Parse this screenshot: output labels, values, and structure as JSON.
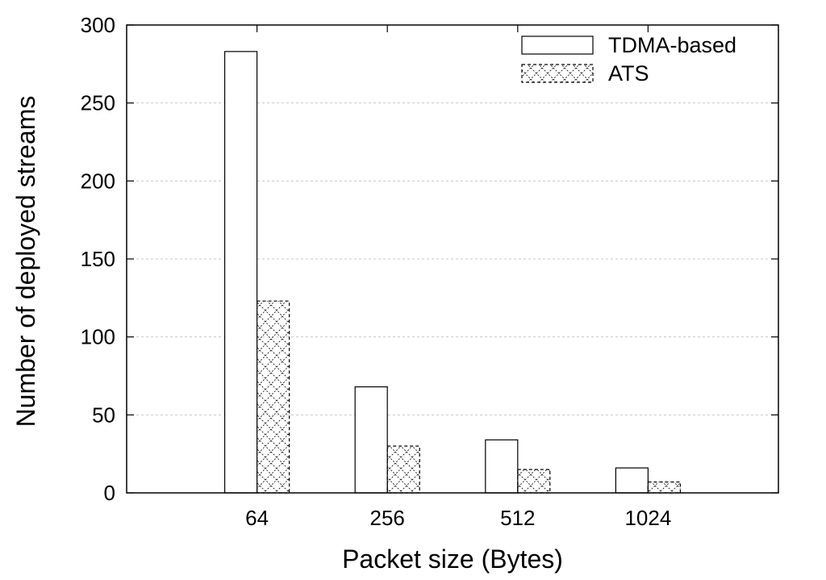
{
  "chart_data": {
    "type": "bar",
    "title": "",
    "xlabel": "Packet size (Bytes)",
    "ylabel": "Number of deployed streams",
    "categories": [
      "64",
      "256",
      "512",
      "1024"
    ],
    "series": [
      {
        "name": "TDMA-based",
        "values": [
          283,
          68,
          34,
          16
        ],
        "pattern": "empty"
      },
      {
        "name": "ATS",
        "values": [
          123,
          30,
          15,
          7
        ],
        "pattern": "crosshatch"
      }
    ],
    "ylim": [
      0,
      300
    ],
    "yticks": [
      0,
      50,
      100,
      150,
      200,
      250,
      300
    ],
    "grid": "horizontal dotted",
    "legend_position": "top-right",
    "colors": {
      "bar_fill": "#ffffff",
      "bar_stroke": "#000000",
      "grid": "#c8c8c8"
    }
  }
}
